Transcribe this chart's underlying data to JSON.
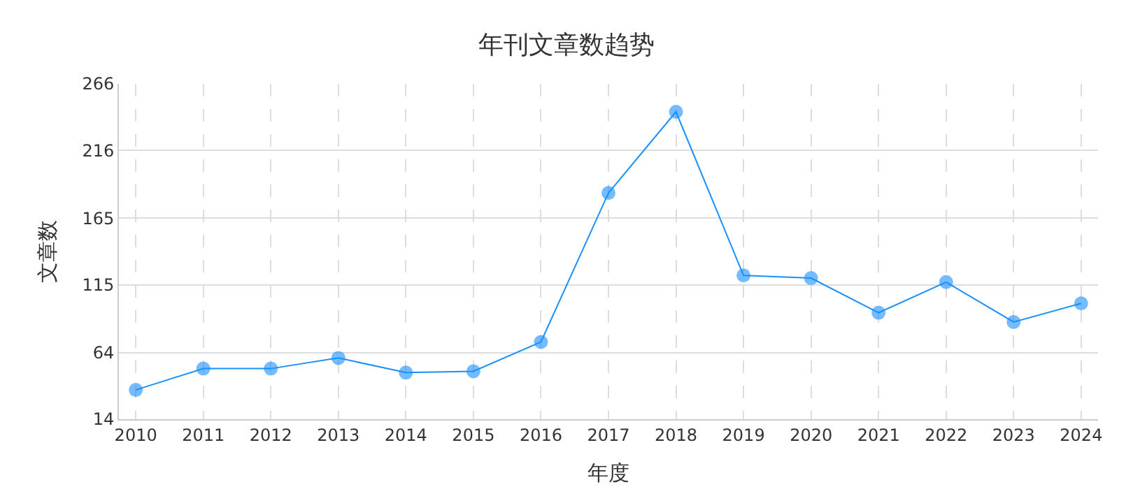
{
  "chart_data": {
    "type": "line",
    "title": "年刊文章数趋势",
    "xlabel": "年度",
    "ylabel": "文章数",
    "categories": [
      "2010",
      "2011",
      "2012",
      "2013",
      "2014",
      "2015",
      "2016",
      "2017",
      "2018",
      "2019",
      "2020",
      "2021",
      "2022",
      "2023",
      "2024"
    ],
    "series": [
      {
        "color": "#1890ff",
        "values": [
          36,
          52,
          52,
          60,
          49,
          50,
          72,
          184,
          245,
          122,
          120,
          94,
          117,
          87,
          101
        ]
      }
    ],
    "ylim": [
      14,
      266
    ],
    "yticks": [
      14,
      64,
      115,
      165,
      216,
      266
    ],
    "grid": true,
    "marker": "circle",
    "line_style": "solid",
    "legend": false
  }
}
